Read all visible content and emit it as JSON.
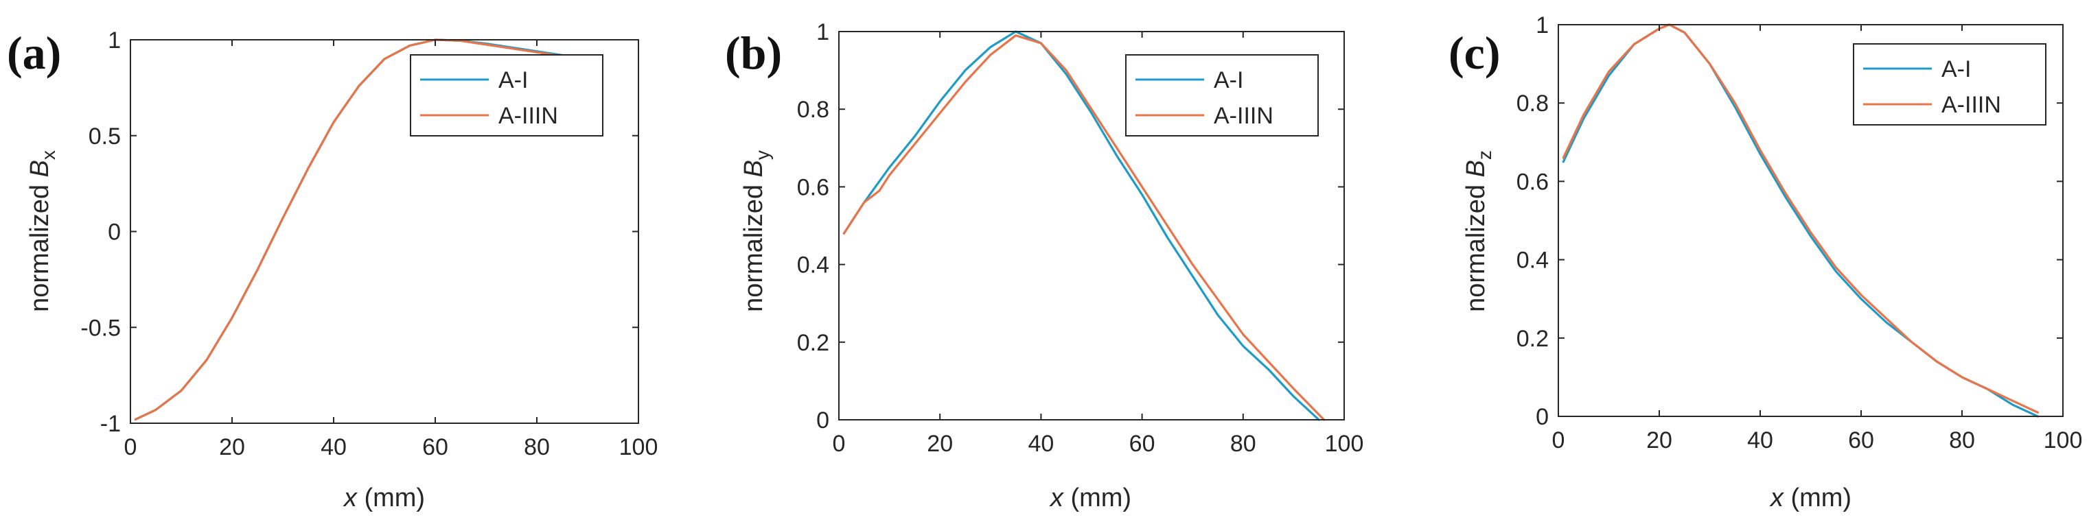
{
  "figure": {
    "panels_note": "Three subplots comparing normalized magnetic field components along x"
  },
  "chart_data": [
    {
      "type": "line",
      "panel_label": "(a)",
      "ylabel_prefix": "normalized ",
      "ylabel_var": "B",
      "ylabel_sub": "x",
      "xlabel_var": "x",
      "xlabel_unit": " (mm)",
      "xlim": [
        0,
        100
      ],
      "ylim": [
        -1,
        1
      ],
      "xticks": [
        0,
        20,
        40,
        60,
        80,
        100
      ],
      "xtick_labels": [
        "0",
        "20",
        "40",
        "60",
        "80",
        "100"
      ],
      "yticks": [
        -1,
        -0.5,
        0,
        0.5,
        1
      ],
      "ytick_labels": [
        "-1",
        "-0.5",
        "0",
        "0.5",
        "1"
      ],
      "legend": [
        "A-I",
        "A-IIIN"
      ],
      "series": [
        {
          "name": "A-I",
          "color": "#1f9bc9",
          "x": [
            1,
            5,
            10,
            15,
            20,
            25,
            30,
            35,
            40,
            45,
            50,
            55,
            60,
            65,
            70,
            75,
            80,
            85,
            88
          ],
          "values": [
            -0.98,
            -0.93,
            -0.83,
            -0.67,
            -0.45,
            -0.2,
            0.07,
            0.33,
            0.57,
            0.76,
            0.9,
            0.97,
            1.0,
            0.995,
            0.98,
            0.96,
            0.94,
            0.92,
            0.9
          ]
        },
        {
          "name": "A-IIIN",
          "color": "#e8744a",
          "x": [
            1,
            5,
            10,
            15,
            20,
            25,
            30,
            35,
            40,
            45,
            50,
            55,
            60,
            65,
            70,
            75,
            80,
            85
          ],
          "values": [
            -0.98,
            -0.93,
            -0.83,
            -0.67,
            -0.45,
            -0.2,
            0.07,
            0.33,
            0.57,
            0.76,
            0.9,
            0.97,
            1.0,
            0.995,
            0.975,
            0.955,
            0.935,
            0.915
          ]
        }
      ]
    },
    {
      "type": "line",
      "panel_label": "(b)",
      "ylabel_prefix": "normalized ",
      "ylabel_var": "B",
      "ylabel_sub": "y",
      "xlabel_var": "x",
      "xlabel_unit": " (mm)",
      "xlim": [
        0,
        100
      ],
      "ylim": [
        0,
        1
      ],
      "xticks": [
        0,
        20,
        40,
        60,
        80,
        100
      ],
      "xtick_labels": [
        "0",
        "20",
        "40",
        "60",
        "80",
        "100"
      ],
      "yticks": [
        0,
        0.2,
        0.4,
        0.6,
        0.8,
        1
      ],
      "ytick_labels": [
        "0",
        "0.2",
        "0.4",
        "0.6",
        "0.8",
        "1"
      ],
      "legend": [
        "A-I",
        "A-IIIN"
      ],
      "series": [
        {
          "name": "A-I",
          "color": "#1f9bc9",
          "x": [
            1,
            5,
            10,
            15,
            20,
            25,
            30,
            35,
            40,
            45,
            50,
            55,
            60,
            65,
            70,
            75,
            80,
            85,
            90,
            95
          ],
          "values": [
            0.48,
            0.56,
            0.65,
            0.73,
            0.82,
            0.9,
            0.96,
            1.0,
            0.97,
            0.89,
            0.79,
            0.68,
            0.58,
            0.47,
            0.37,
            0.27,
            0.19,
            0.13,
            0.06,
            0.0
          ]
        },
        {
          "name": "A-IIIN",
          "color": "#e8744a",
          "x": [
            1,
            5,
            8,
            10,
            15,
            20,
            25,
            30,
            35,
            40,
            45,
            50,
            55,
            60,
            65,
            70,
            75,
            80,
            85,
            90,
            96
          ],
          "values": [
            0.48,
            0.56,
            0.59,
            0.63,
            0.71,
            0.79,
            0.87,
            0.94,
            0.99,
            0.97,
            0.9,
            0.8,
            0.7,
            0.6,
            0.5,
            0.4,
            0.31,
            0.22,
            0.15,
            0.08,
            0.0
          ]
        }
      ]
    },
    {
      "type": "line",
      "panel_label": "(c)",
      "ylabel_prefix": "normalized ",
      "ylabel_var": "B",
      "ylabel_sub": "z",
      "xlabel_var": "x",
      "xlabel_unit": " (mm)",
      "xlim": [
        0,
        100
      ],
      "ylim": [
        0,
        1
      ],
      "xticks": [
        0,
        20,
        40,
        60,
        80,
        100
      ],
      "xtick_labels": [
        "0",
        "20",
        "40",
        "60",
        "80",
        "100"
      ],
      "yticks": [
        0,
        0.2,
        0.4,
        0.6,
        0.8,
        1
      ],
      "ytick_labels": [
        "0",
        "0.2",
        "0.4",
        "0.6",
        "0.8",
        "1"
      ],
      "legend": [
        "A-I",
        "A-IIIN"
      ],
      "series": [
        {
          "name": "A-I",
          "color": "#1f9bc9",
          "x": [
            1,
            5,
            10,
            15,
            20,
            22,
            25,
            30,
            35,
            40,
            45,
            50,
            55,
            60,
            65,
            70,
            75,
            80,
            85,
            90,
            95
          ],
          "values": [
            0.65,
            0.76,
            0.87,
            0.95,
            0.99,
            1.0,
            0.98,
            0.9,
            0.79,
            0.67,
            0.56,
            0.46,
            0.37,
            0.3,
            0.24,
            0.19,
            0.14,
            0.1,
            0.07,
            0.03,
            0.0
          ]
        },
        {
          "name": "A-IIIN",
          "color": "#e8744a",
          "x": [
            1,
            5,
            10,
            15,
            20,
            22,
            25,
            30,
            35,
            40,
            45,
            50,
            55,
            60,
            65,
            70,
            75,
            80,
            85,
            90,
            95
          ],
          "values": [
            0.66,
            0.77,
            0.88,
            0.95,
            0.99,
            1.0,
            0.98,
            0.9,
            0.8,
            0.68,
            0.57,
            0.47,
            0.38,
            0.31,
            0.25,
            0.19,
            0.14,
            0.1,
            0.07,
            0.04,
            0.01
          ]
        }
      ]
    }
  ]
}
